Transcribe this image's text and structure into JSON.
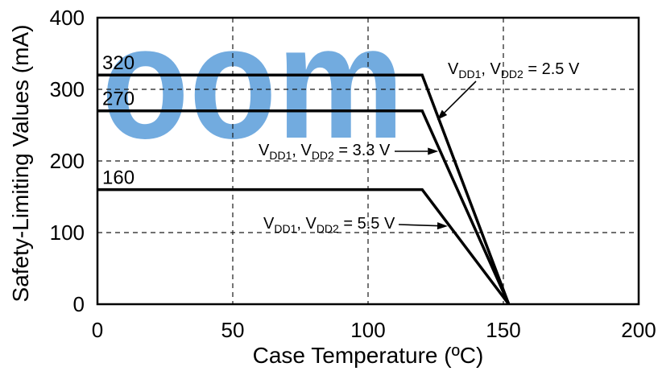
{
  "watermark": {
    "text": "oom",
    "color": "#3d8bd4"
  },
  "chart_data": {
    "type": "line",
    "xlabel": "Case Temperature (ºC)",
    "ylabel": "Safety-Limiting Values (mA)",
    "xlim": [
      0,
      200
    ],
    "ylim": [
      0,
      400
    ],
    "x_ticks": [
      0,
      50,
      100,
      150,
      200
    ],
    "y_ticks": [
      0,
      100,
      200,
      300,
      400
    ],
    "grid": true,
    "line_color": "#000000",
    "series": [
      {
        "x": [
          0,
          120,
          152
        ],
        "y": [
          320,
          320,
          0
        ],
        "data_label": "320",
        "annotation": [
          {
            "t": "V"
          },
          {
            "t": "DD1",
            "sub": true
          },
          {
            "t": ", V"
          },
          {
            "t": "DD2",
            "sub": true
          },
          {
            "t": " = 2.5 V"
          }
        ]
      },
      {
        "x": [
          0,
          120,
          152
        ],
        "y": [
          270,
          270,
          0
        ],
        "data_label": "270",
        "annotation": [
          {
            "t": "V"
          },
          {
            "t": "DD1",
            "sub": true
          },
          {
            "t": ", V"
          },
          {
            "t": "DD2",
            "sub": true
          },
          {
            "t": " = 3.3 V"
          }
        ]
      },
      {
        "x": [
          0,
          120,
          152
        ],
        "y": [
          160,
          160,
          0
        ],
        "data_label": "160",
        "annotation": [
          {
            "t": "V"
          },
          {
            "t": "DD1",
            "sub": true
          },
          {
            "t": ", V"
          },
          {
            "t": "DD2",
            "sub": true
          },
          {
            "t": " = 5.5 V"
          }
        ]
      }
    ]
  }
}
